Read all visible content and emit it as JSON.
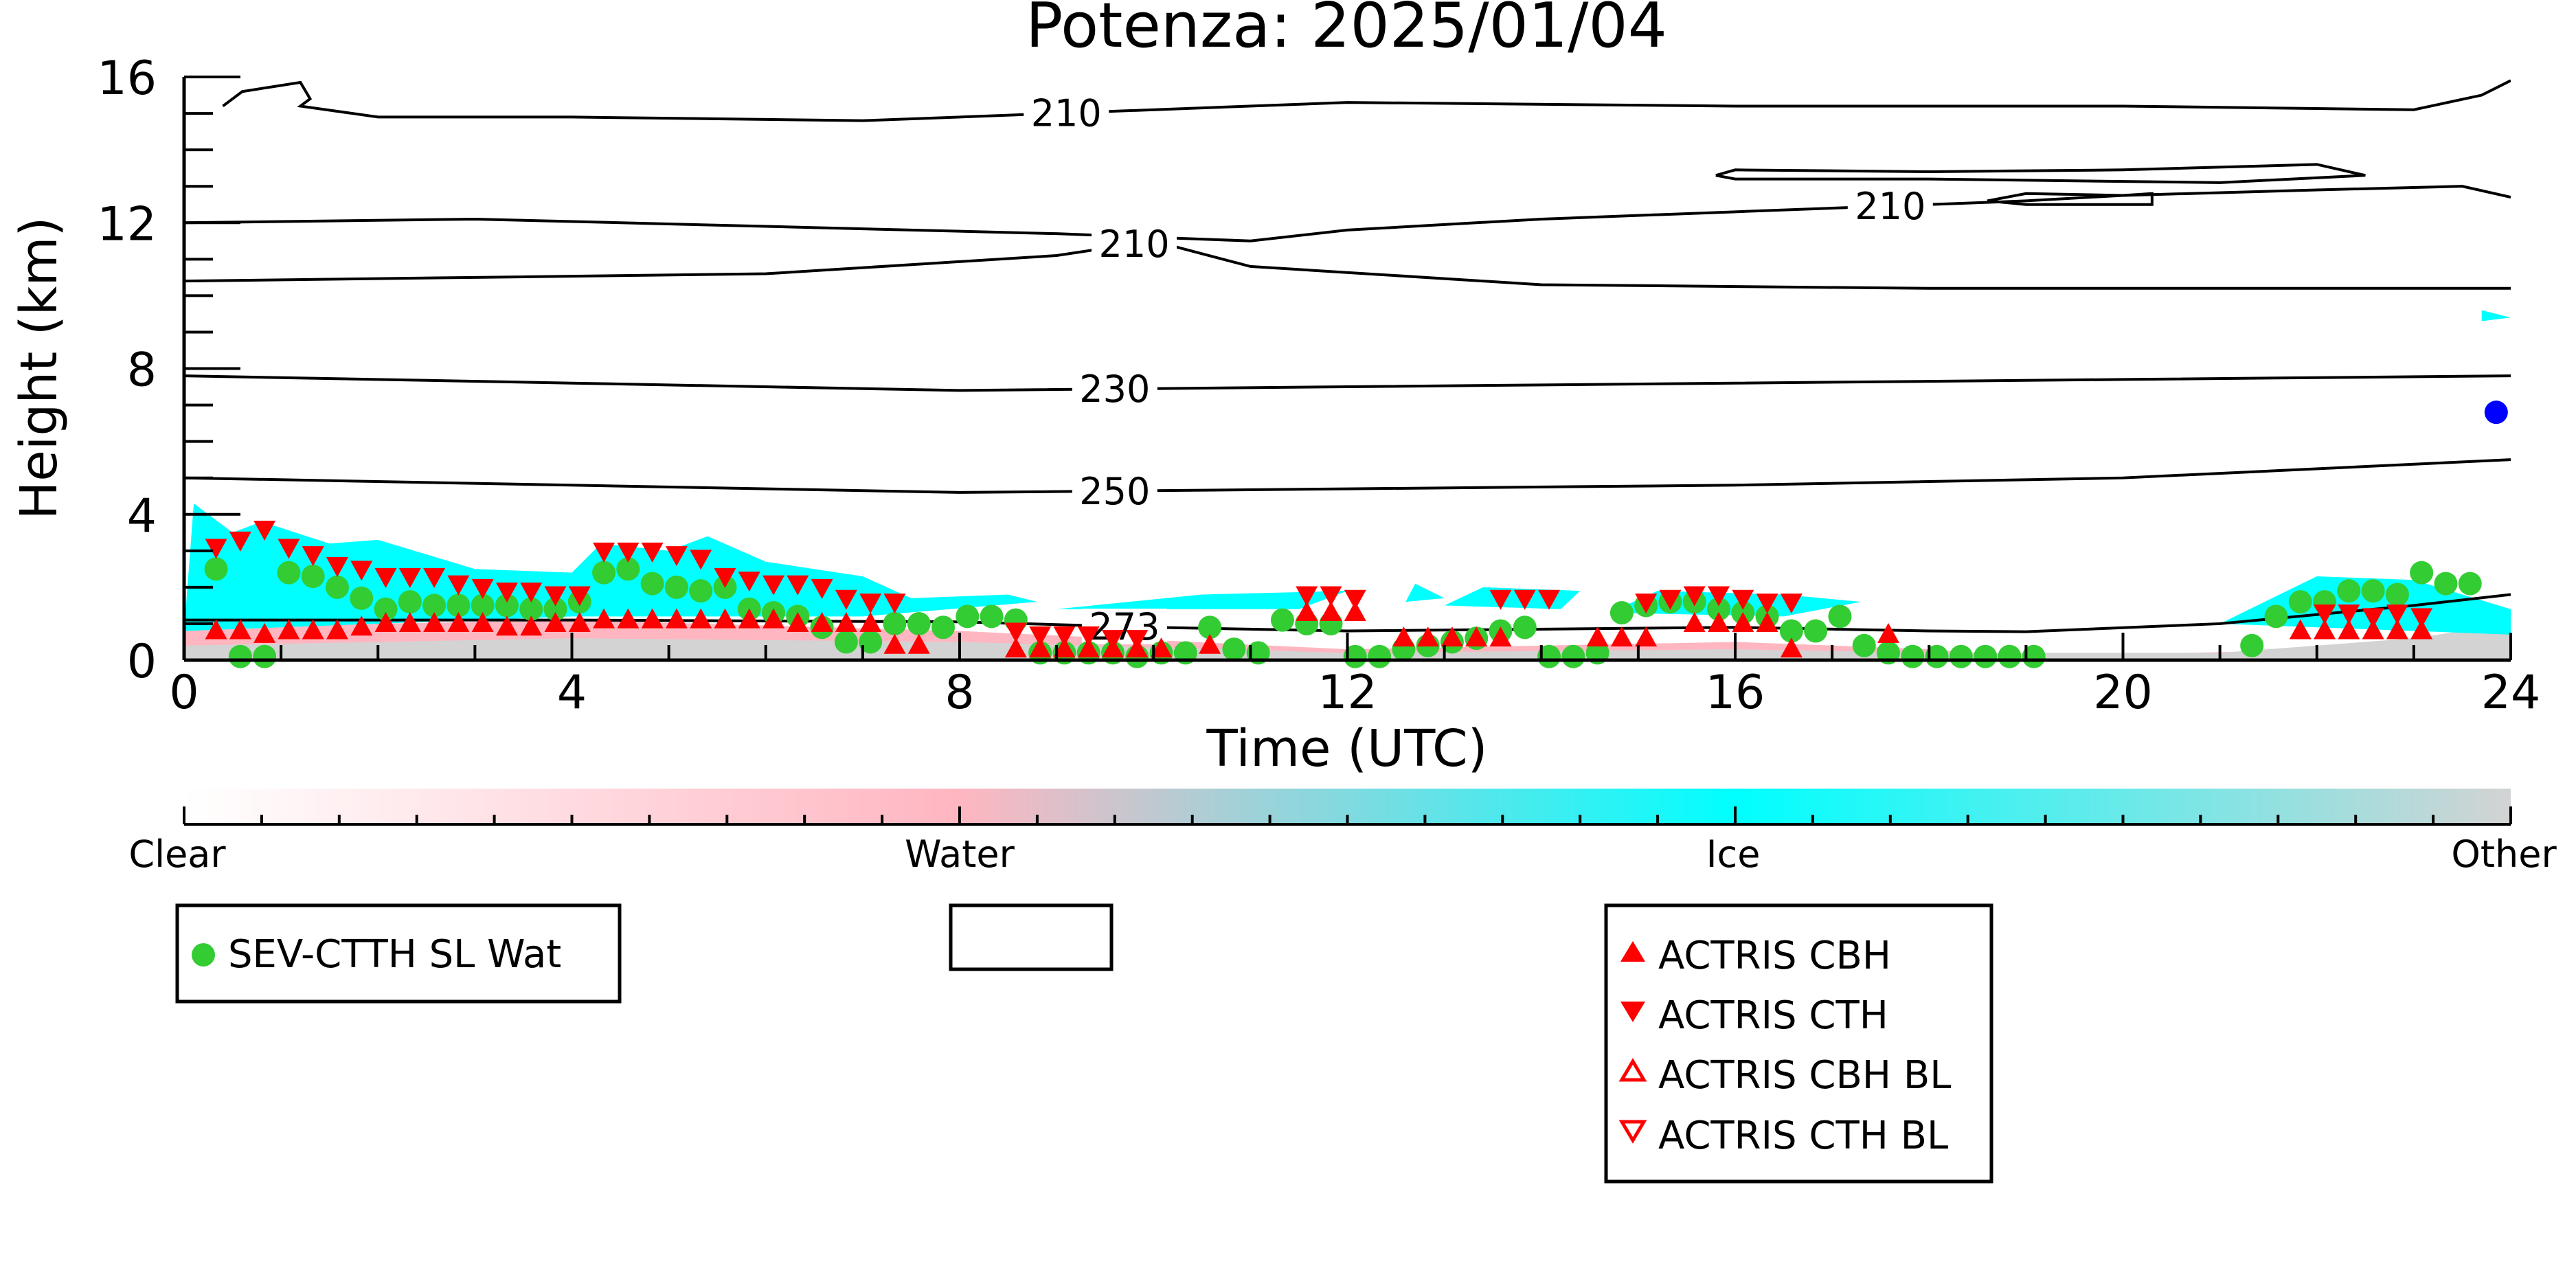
{
  "chart_data": {
    "type": "scatter",
    "title": "Potenza: 2025/01/04",
    "xlabel": "Time (UTC)",
    "ylabel": "Height (km)",
    "xlim": [
      0,
      24
    ],
    "ylim": [
      0,
      16
    ],
    "x_ticks": [
      "0",
      "4",
      "8",
      "12",
      "16",
      "20",
      "24"
    ],
    "y_ticks": [
      "0",
      "4",
      "8",
      "12",
      "16"
    ],
    "grid": false,
    "colors": {
      "clear": "#ffffff",
      "water": "#ffb6c1",
      "ice": "#00ffff",
      "other": "#d3d3d3",
      "sev": "#33cc33",
      "actris": "#ff0000",
      "marker_blue": "#0000ff"
    },
    "colorbar": {
      "labels": [
        "Clear",
        "Water",
        "Ice",
        "Other"
      ]
    },
    "contours": [
      {
        "label": "210",
        "label_x": 9.1,
        "points": [
          [
            0.4,
            15.2
          ],
          [
            0.6,
            15.6
          ],
          [
            1.2,
            15.85
          ],
          [
            1.3,
            15.4
          ],
          [
            1.2,
            15.2
          ],
          [
            2,
            14.9
          ],
          [
            4,
            14.9
          ],
          [
            7,
            14.8
          ],
          [
            9,
            15.0
          ],
          [
            12,
            15.3
          ],
          [
            16,
            15.2
          ],
          [
            20,
            15.2
          ],
          [
            23,
            15.1
          ],
          [
            23.7,
            15.5
          ],
          [
            24,
            15.9
          ]
        ]
      },
      {
        "label": "210",
        "label_x": 17.6,
        "points": [
          [
            0,
            12.0
          ],
          [
            3,
            12.1
          ],
          [
            6,
            11.9
          ],
          [
            9,
            11.7
          ],
          [
            10,
            11.6
          ],
          [
            11,
            11.5
          ],
          [
            12,
            11.8
          ],
          [
            14,
            12.1
          ],
          [
            16,
            12.3
          ],
          [
            17.5,
            12.45
          ],
          [
            18.5,
            12.55
          ],
          [
            19,
            12.6
          ],
          [
            20,
            12.75
          ],
          [
            22,
            12.9
          ],
          [
            23.5,
            13.0
          ],
          [
            24,
            12.7
          ]
        ]
      },
      {
        "label": "210",
        "label_x": 9.8,
        "points": [
          [
            0,
            10.4
          ],
          [
            3,
            10.5
          ],
          [
            6,
            10.6
          ],
          [
            9,
            11.1
          ],
          [
            10,
            11.5
          ],
          [
            11,
            10.8
          ],
          [
            14,
            10.3
          ],
          [
            18,
            10.2
          ],
          [
            24,
            10.2
          ]
        ]
      },
      {
        "label": "",
        "label_x": 0,
        "points": [
          [
            15.8,
            13.3
          ],
          [
            16,
            13.45
          ],
          [
            18,
            13.4
          ],
          [
            20,
            13.45
          ],
          [
            22,
            13.6
          ],
          [
            22.5,
            13.3
          ],
          [
            21,
            13.1
          ],
          [
            18,
            13.2
          ],
          [
            16,
            13.2
          ],
          [
            15.8,
            13.3
          ]
        ]
      },
      {
        "label": "",
        "label_x": 0,
        "points": [
          [
            18.6,
            12.6
          ],
          [
            19,
            12.8
          ],
          [
            20,
            12.75
          ],
          [
            20.3,
            12.8
          ],
          [
            20.3,
            12.5
          ],
          [
            19,
            12.5
          ],
          [
            18.6,
            12.6
          ]
        ]
      },
      {
        "label": "230",
        "label_x": 9.6,
        "points": [
          [
            0,
            7.8
          ],
          [
            4,
            7.6
          ],
          [
            8,
            7.4
          ],
          [
            12,
            7.5
          ],
          [
            16,
            7.6
          ],
          [
            20,
            7.7
          ],
          [
            24,
            7.8
          ]
        ]
      },
      {
        "label": "250",
        "label_x": 9.6,
        "points": [
          [
            0,
            5.0
          ],
          [
            4,
            4.8
          ],
          [
            8,
            4.6
          ],
          [
            12,
            4.7
          ],
          [
            16,
            4.8
          ],
          [
            20,
            5.0
          ],
          [
            24,
            5.5
          ]
        ]
      },
      {
        "label": "273",
        "label_x": 9.7,
        "points": [
          [
            0,
            1.1
          ],
          [
            4,
            1.1
          ],
          [
            8,
            1.05
          ],
          [
            10,
            0.9
          ],
          [
            12,
            0.8
          ],
          [
            16,
            0.9
          ],
          [
            18,
            0.8
          ],
          [
            19,
            0.78
          ],
          [
            21,
            1.0
          ],
          [
            23,
            1.5
          ],
          [
            24,
            1.8
          ]
        ]
      }
    ],
    "cloud_regions": [
      {
        "class": "water",
        "points": [
          [
            0,
            0
          ],
          [
            0,
            0.9
          ],
          [
            4,
            1.1
          ],
          [
            8,
            0.8
          ],
          [
            12,
            0.3
          ],
          [
            16,
            0.5
          ],
          [
            18,
            0.3
          ],
          [
            19,
            0.1
          ],
          [
            24,
            0.4
          ],
          [
            24,
            0
          ]
        ]
      },
      {
        "class": "other",
        "points": [
          [
            0,
            0
          ],
          [
            0,
            0.4
          ],
          [
            4,
            0.6
          ],
          [
            8,
            0.5
          ],
          [
            12,
            0.2
          ],
          [
            16,
            0.3
          ],
          [
            18,
            0.2
          ],
          [
            21,
            0.2
          ],
          [
            23,
            0.6
          ],
          [
            24,
            1.0
          ],
          [
            24,
            0
          ]
        ]
      },
      {
        "class": "ice",
        "points": [
          [
            0,
            0.8
          ],
          [
            0.1,
            4.3
          ],
          [
            0.5,
            3.5
          ],
          [
            0.8,
            3.8
          ],
          [
            1.5,
            3.2
          ],
          [
            2,
            3.3
          ],
          [
            3,
            2.5
          ],
          [
            4,
            2.4
          ],
          [
            4.3,
            3.2
          ],
          [
            5,
            3.0
          ],
          [
            5.4,
            3.4
          ],
          [
            6,
            2.7
          ],
          [
            7,
            2.3
          ],
          [
            7.5,
            1.7
          ],
          [
            8.5,
            1.8
          ],
          [
            8.8,
            1.6
          ],
          [
            7,
            1.2
          ],
          [
            4,
            1.2
          ],
          [
            0,
            0.8
          ]
        ]
      },
      {
        "class": "ice",
        "points": [
          [
            9,
            1.4
          ],
          [
            10.5,
            1.8
          ],
          [
            12,
            1.9
          ],
          [
            11.5,
            1.4
          ],
          [
            9,
            1.4
          ]
        ]
      },
      {
        "class": "ice",
        "points": [
          [
            12.6,
            1.6
          ],
          [
            12.7,
            2.1
          ],
          [
            13,
            1.7
          ],
          [
            12.6,
            1.6
          ]
        ]
      },
      {
        "class": "ice",
        "points": [
          [
            13,
            1.5
          ],
          [
            13.4,
            2.0
          ],
          [
            14.4,
            1.9
          ],
          [
            14.2,
            1.4
          ],
          [
            13,
            1.5
          ]
        ]
      },
      {
        "class": "ice",
        "points": [
          [
            14.7,
            1.3
          ],
          [
            15.2,
            1.9
          ],
          [
            16.5,
            1.8
          ],
          [
            17.3,
            1.6
          ],
          [
            16.5,
            1.2
          ],
          [
            14.7,
            1.3
          ]
        ]
      },
      {
        "class": "ice",
        "points": [
          [
            21,
            1.0
          ],
          [
            22,
            2.3
          ],
          [
            23,
            2.2
          ],
          [
            24,
            1.4
          ],
          [
            24,
            0.7
          ],
          [
            21,
            1.0
          ]
        ]
      },
      {
        "class": "ice",
        "points": [
          [
            23.7,
            9.3
          ],
          [
            23.7,
            9.6
          ],
          [
            24,
            9.4
          ],
          [
            23.7,
            9.3
          ]
        ]
      }
    ],
    "series": [
      {
        "name": "SEV-CTTH SL Wat",
        "marker": "circle",
        "color": "#33cc33",
        "x": [
          0.33,
          0.58,
          0.83,
          1.08,
          1.33,
          1.58,
          1.83,
          2.08,
          2.33,
          2.58,
          2.83,
          3.08,
          3.33,
          3.58,
          3.83,
          4.08,
          4.33,
          4.58,
          4.83,
          5.08,
          5.33,
          5.58,
          5.83,
          6.08,
          6.33,
          6.58,
          6.83,
          7.08,
          7.33,
          7.58,
          7.83,
          8.08,
          8.33,
          8.58,
          8.83,
          9.08,
          9.33,
          9.58,
          9.83,
          10.08,
          10.33,
          10.58,
          10.83,
          11.08,
          11.33,
          11.58,
          11.83,
          12.08,
          12.33,
          12.58,
          12.83,
          13.08,
          13.33,
          13.58,
          13.83,
          14.08,
          14.33,
          14.58,
          14.83,
          15.08,
          15.33,
          15.58,
          15.83,
          16.08,
          16.33,
          16.58,
          16.83,
          17.08,
          17.33,
          17.58,
          17.83,
          18.08,
          18.33,
          18.58,
          18.83,
          19.08,
          21.33,
          21.58,
          21.83,
          22.08,
          22.33,
          22.58,
          22.83,
          23.08,
          23.33,
          23.58
        ],
        "y": [
          2.5,
          0.1,
          0.1,
          2.4,
          2.3,
          2.0,
          1.7,
          1.4,
          1.6,
          1.5,
          1.5,
          1.5,
          1.5,
          1.4,
          1.4,
          1.6,
          2.4,
          2.5,
          2.1,
          2.0,
          1.9,
          2.0,
          1.4,
          1.3,
          1.2,
          0.9,
          0.5,
          0.5,
          1.0,
          1.0,
          0.9,
          1.2,
          1.2,
          1.1,
          0.2,
          0.2,
          0.2,
          0.2,
          0.1,
          0.2,
          0.2,
          0.9,
          0.3,
          0.2,
          1.1,
          1.0,
          1.0,
          0.1,
          0.1,
          0.3,
          0.4,
          0.5,
          0.6,
          0.8,
          0.9,
          0.1,
          0.1,
          0.2,
          1.3,
          1.5,
          1.6,
          1.6,
          1.4,
          1.3,
          1.2,
          0.8,
          0.8,
          1.2,
          0.4,
          0.2,
          0.1,
          0.1,
          0.1,
          0.1,
          0.1,
          0.1,
          0.4,
          1.2,
          1.6,
          1.6,
          1.9,
          1.9,
          1.8,
          2.4,
          2.1,
          2.1
        ]
      },
      {
        "name": "ACTRIS CBH",
        "marker": "triangle-up",
        "color": "#ff0000",
        "x": [
          0.33,
          0.58,
          0.83,
          1.08,
          1.33,
          1.58,
          1.83,
          2.08,
          2.33,
          2.58,
          2.83,
          3.08,
          3.33,
          3.58,
          3.83,
          4.08,
          4.33,
          4.58,
          4.83,
          5.08,
          5.33,
          5.58,
          5.83,
          6.08,
          6.33,
          6.58,
          6.83,
          7.08,
          7.33,
          7.58,
          8.58,
          8.83,
          9.08,
          9.33,
          9.58,
          9.83,
          10.08,
          10.58,
          11.58,
          11.83,
          12.08,
          12.58,
          12.83,
          13.08,
          13.33,
          13.58,
          14.58,
          14.83,
          15.08,
          15.58,
          15.83,
          16.08,
          16.33,
          16.58,
          17.58,
          21.83,
          22.08,
          22.33,
          22.58,
          22.83,
          23.08
        ],
        "y": [
          0.8,
          0.8,
          0.7,
          0.8,
          0.8,
          0.8,
          0.9,
          1.0,
          1.0,
          1.0,
          1.0,
          1.0,
          0.9,
          0.9,
          1.0,
          1.0,
          1.1,
          1.1,
          1.1,
          1.1,
          1.1,
          1.1,
          1.1,
          1.1,
          1.0,
          1.0,
          1.0,
          1.0,
          0.4,
          0.4,
          0.3,
          0.3,
          0.3,
          0.3,
          0.3,
          0.3,
          0.3,
          0.4,
          1.3,
          1.3,
          1.3,
          0.6,
          0.6,
          0.6,
          0.6,
          0.6,
          0.6,
          0.6,
          0.6,
          1.0,
          1.0,
          1.0,
          1.0,
          0.3,
          0.7,
          0.8,
          0.8,
          0.8,
          0.8,
          0.8,
          0.8
        ]
      },
      {
        "name": "ACTRIS CTH",
        "marker": "triangle-down",
        "color": "#ff0000",
        "x": [
          0.33,
          0.58,
          0.83,
          1.08,
          1.33,
          1.58,
          1.83,
          2.08,
          2.33,
          2.58,
          2.83,
          3.08,
          3.33,
          3.58,
          3.83,
          4.08,
          4.33,
          4.58,
          4.83,
          5.08,
          5.33,
          5.58,
          5.83,
          6.08,
          6.33,
          6.58,
          6.83,
          7.08,
          7.33,
          8.58,
          8.83,
          9.08,
          9.33,
          9.58,
          9.83,
          11.58,
          11.83,
          12.08,
          13.58,
          13.83,
          14.08,
          15.08,
          15.33,
          15.58,
          15.83,
          16.08,
          16.33,
          16.58,
          22.08,
          22.33,
          22.58,
          22.83,
          23.08
        ],
        "y": [
          3.1,
          3.3,
          3.6,
          3.1,
          2.9,
          2.6,
          2.5,
          2.3,
          2.3,
          2.3,
          2.1,
          2.0,
          1.9,
          1.9,
          1.8,
          1.8,
          3.0,
          3.0,
          3.0,
          2.9,
          2.8,
          2.3,
          2.2,
          2.1,
          2.1,
          2.0,
          1.7,
          1.6,
          1.6,
          0.8,
          0.7,
          0.7,
          0.7,
          0.6,
          0.6,
          1.8,
          1.8,
          1.7,
          1.7,
          1.7,
          1.7,
          1.6,
          1.7,
          1.8,
          1.8,
          1.7,
          1.6,
          1.6,
          1.3,
          1.3,
          1.2,
          1.3,
          1.2
        ]
      },
      {
        "name": "ACTRIS CBH BL",
        "marker": "triangle-up-open",
        "color": "#ff0000",
        "x": [],
        "y": []
      },
      {
        "name": "ACTRIS CTH BL",
        "marker": "triangle-down-open",
        "color": "#ff0000",
        "x": [],
        "y": []
      },
      {
        "name": "",
        "marker": "circle",
        "color": "#0000ff",
        "x": [
          23.85
        ],
        "y": [
          6.8
        ]
      }
    ]
  }
}
